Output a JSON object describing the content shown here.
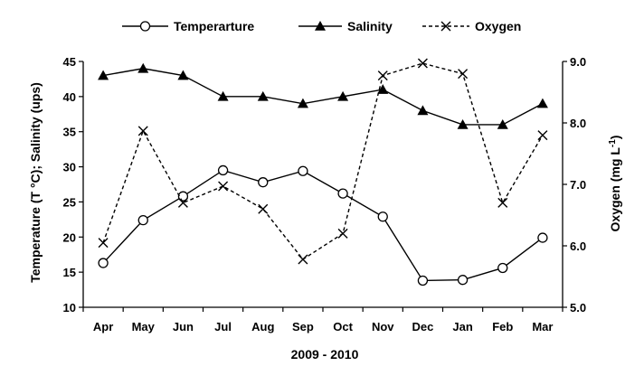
{
  "chart_data": {
    "type": "line",
    "categories": [
      "Apr",
      "May",
      "Jun",
      "Jul",
      "Aug",
      "Sep",
      "Oct",
      "Nov",
      "Dec",
      "Jan",
      "Feb",
      "Mar"
    ],
    "xlabel": "2009 - 2010",
    "ylabel_left": "Temperature (T °C); Salinity (ups)",
    "ylabel_right": "Oxygen (mg L",
    "ylabel_right_sup": "-1",
    "ylabel_right_close": ")",
    "ylim_left": [
      10,
      45
    ],
    "yticks_left": [
      "10",
      "15",
      "20",
      "25",
      "30",
      "35",
      "40",
      "45"
    ],
    "ylim_right": [
      5.0,
      9.0
    ],
    "yticks_right": [
      "5.0",
      "6.0",
      "7.0",
      "8.0",
      "9.0"
    ],
    "grid": false,
    "legend_position": "top",
    "series": [
      {
        "name": "Temperarture",
        "axis": "left",
        "marker": "circle",
        "dash": "solid",
        "values": [
          16.3,
          22.4,
          25.8,
          29.5,
          27.8,
          29.4,
          26.2,
          22.9,
          13.8,
          13.9,
          15.6,
          19.9
        ]
      },
      {
        "name": "Salinity",
        "axis": "left",
        "marker": "triangle",
        "dash": "solid",
        "values": [
          43,
          44,
          43,
          40,
          40,
          39,
          40,
          41,
          38,
          36,
          36,
          39
        ]
      },
      {
        "name": "Oxygen",
        "axis": "right",
        "marker": "x",
        "dash": "dashed",
        "values": [
          6.05,
          7.87,
          6.7,
          6.97,
          6.6,
          5.78,
          6.2,
          8.77,
          8.97,
          8.8,
          6.7,
          7.8
        ]
      }
    ]
  }
}
